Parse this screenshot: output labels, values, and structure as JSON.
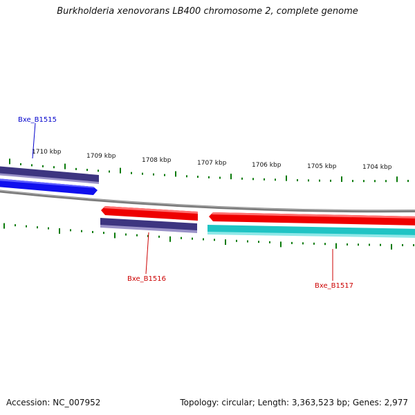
{
  "title": "Burkholderia xenovorans LB400 chromosome 2, complete genome",
  "footer": {
    "accession": "Accession: NC_007952",
    "summary": "Topology: circular; Length: 3,363,523 bp; Genes: 2,977"
  },
  "ticks": [
    {
      "label": "1710 kbp"
    },
    {
      "label": "1709 kbp"
    },
    {
      "label": "1708 kbp"
    },
    {
      "label": "1707 kbp"
    },
    {
      "label": "1706 kbp"
    },
    {
      "label": "1705 kbp"
    },
    {
      "label": "1704 kbp"
    }
  ],
  "genes": [
    {
      "name": "Bxe_B1515",
      "color": "#0000cc"
    },
    {
      "name": "Bxe_B1516",
      "color": "#cc0000"
    },
    {
      "name": "Bxe_B1517",
      "color": "#cc0000"
    }
  ],
  "colors": {
    "tick": "#0a7a0a",
    "backbone": "#808080",
    "forward_cds": "#1010ee",
    "reverse_cds": "#ee0000",
    "forward_gene": "#3d3580",
    "reverse_gene": "#3d3580",
    "other_gene": "#20c4c4"
  }
}
